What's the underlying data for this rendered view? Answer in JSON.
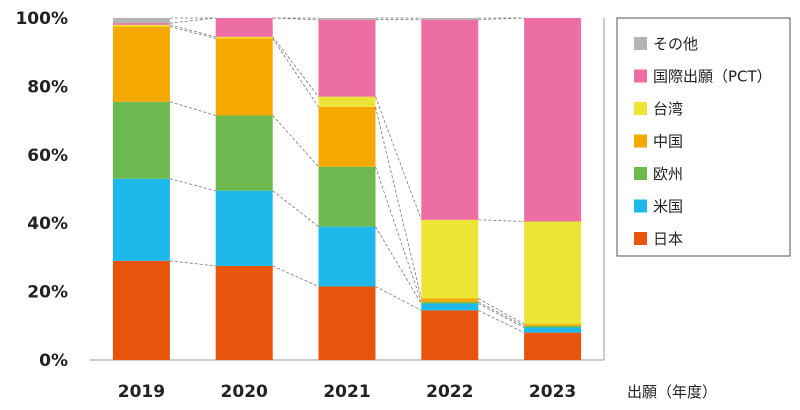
{
  "chart_data": {
    "type": "bar",
    "stacked": true,
    "categories": [
      "2019",
      "2020",
      "2021",
      "2022",
      "2023"
    ],
    "series": [
      {
        "name": "日本",
        "color": "#e8540c",
        "values": [
          29,
          27.5,
          21.5,
          14.5,
          8
        ]
      },
      {
        "name": "米国",
        "color": "#1fb8ea",
        "values": [
          24,
          22,
          17.5,
          2,
          1.5
        ]
      },
      {
        "name": "欧州",
        "color": "#6cb94f",
        "values": [
          22.5,
          22,
          17.5,
          0.5,
          0.5
        ]
      },
      {
        "name": "中国",
        "color": "#f5a800",
        "values": [
          22,
          22.5,
          17.5,
          1,
          0.5
        ]
      },
      {
        "name": "台湾",
        "color": "#ece536",
        "values": [
          0.5,
          0.5,
          3,
          23,
          30
        ]
      },
      {
        "name": "国際出願（PCT）",
        "color": "#ec6ea3",
        "values": [
          0.5,
          5.5,
          22.5,
          58.5,
          59.5
        ]
      },
      {
        "name": "その他",
        "color": "#b4b4b4",
        "values": [
          1.5,
          0,
          0.5,
          0.5,
          0
        ]
      }
    ],
    "ylim": [
      0,
      100
    ],
    "yticks": [
      "0%",
      "20%",
      "40%",
      "60%",
      "80%",
      "100%"
    ],
    "xlabel": "出願（年度）",
    "legend_position": "right",
    "connector_lines": true
  }
}
